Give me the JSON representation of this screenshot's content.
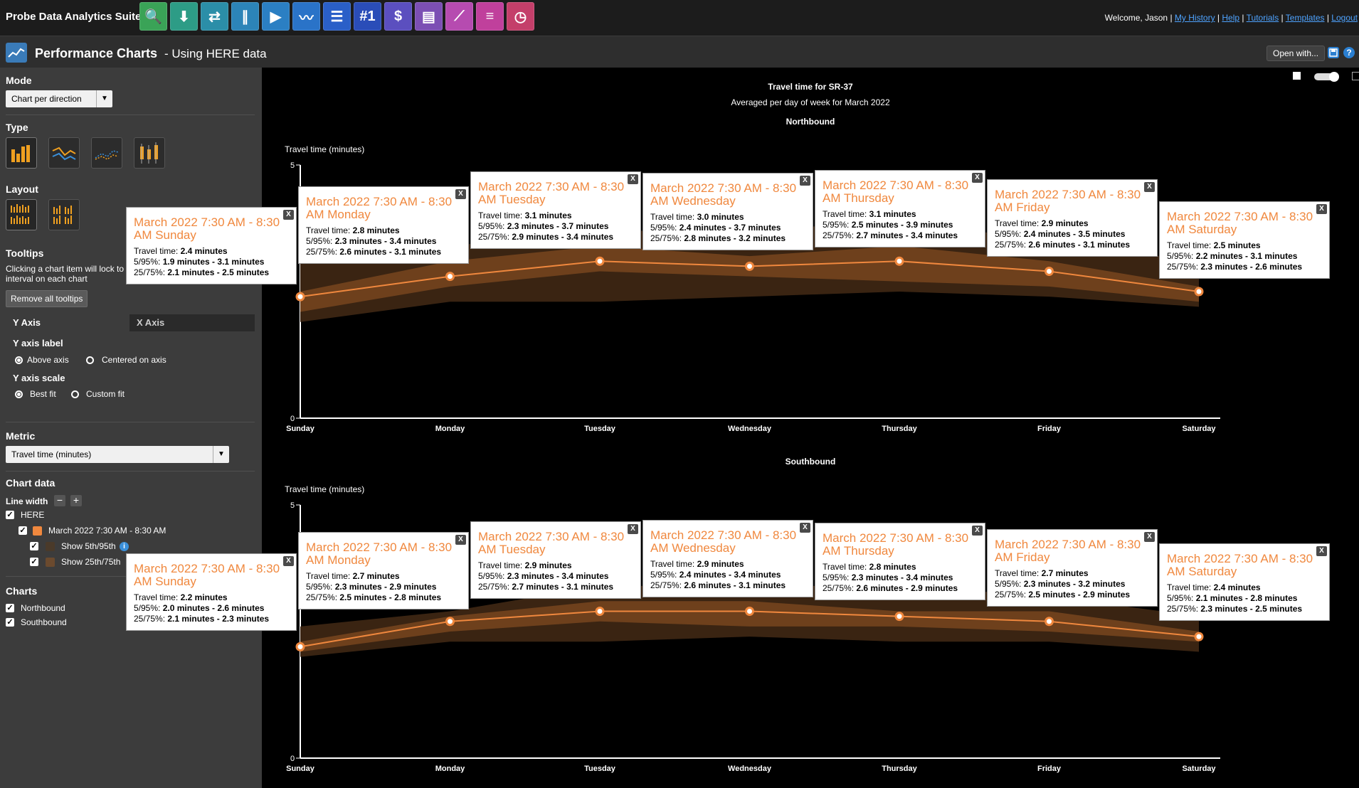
{
  "header": {
    "suite_title": "Probe Data Analytics Suite",
    "welcome": "Welcome, Jason",
    "links": [
      "My History",
      "Help",
      "Tutorials",
      "Templates",
      "Logout"
    ],
    "app_icons": [
      {
        "name": "search-map-icon",
        "bg": "#3aa357",
        "glyph": "🔍"
      },
      {
        "name": "download-icon",
        "bg": "#2d9c86",
        "glyph": "⬇"
      },
      {
        "name": "bottleneck-icon",
        "bg": "#2b8ea8",
        "glyph": "⇄"
      },
      {
        "name": "congestion-scan-icon",
        "bg": "#2c84b8",
        "glyph": "∥"
      },
      {
        "name": "trend-map-icon",
        "bg": "#2b7fc3",
        "glyph": "▶"
      },
      {
        "name": "performance-charts-icon",
        "bg": "#2a73c8",
        "glyph": "〰"
      },
      {
        "name": "ranking-list-icon",
        "bg": "#2a5fc8",
        "glyph": "☰"
      },
      {
        "name": "ranking-number-icon",
        "bg": "#2a4db8",
        "glyph": "#1"
      },
      {
        "name": "user-delay-cost-icon",
        "bg": "#5b4fbf",
        "glyph": "$"
      },
      {
        "name": "massive-data-downloader-icon",
        "bg": "#7c4fb4",
        "glyph": "▤"
      },
      {
        "name": "signal-analytics-icon",
        "bg": "#b64bb0",
        "glyph": "⟋"
      },
      {
        "name": "segmentation-icon",
        "bg": "#c0409c",
        "glyph": "≡"
      },
      {
        "name": "travel-time-icon",
        "bg": "#c43f6a",
        "glyph": "◷"
      }
    ]
  },
  "page": {
    "title": "Performance Charts",
    "subtitle": "- Using HERE data",
    "open_with": "Open with..."
  },
  "sidebar": {
    "mode_label": "Mode",
    "mode_value": "Chart per direction",
    "type_label": "Type",
    "layout_label": "Layout",
    "tooltips_label": "Tooltips",
    "tooltips_desc_1": "Clicking a chart item will lock to",
    "tooltips_desc_2": "interval on each chart",
    "remove_tooltips": "Remove all tooltips",
    "tab_y": "Y Axis",
    "tab_x": "X Axis",
    "y_label_title": "Y axis label",
    "above_axis": "Above axis",
    "centered_axis": "Centered on axis",
    "y_scale_title": "Y axis scale",
    "best_fit": "Best fit",
    "custom_fit": "Custom fit",
    "metric_label": "Metric",
    "metric_value": "Travel time (minutes)",
    "chart_data_label": "Chart data",
    "line_width": "Line width",
    "here": "HERE",
    "dataset": "March 2022 7:30 AM - 8:30 AM",
    "show_5_95": "Show 5th/95th",
    "show_25_75": "Show 25th/75th",
    "charts_label": "Charts",
    "northbound": "Northbound",
    "southbound": "Southbound",
    "dataset_color": "#f0883e"
  },
  "chart": {
    "title": "Travel time for SR-37",
    "subtitle": "Averaged per day of week for March 2022",
    "ylabel": "Travel time (minutes)",
    "accent": "#f0883e"
  },
  "chart_data": [
    {
      "type": "line",
      "title": "Northbound",
      "ylabel": "Travel time (minutes)",
      "ylim": [
        0,
        5
      ],
      "y_ticks": [
        "0",
        "5"
      ],
      "categories": [
        "Sunday",
        "Monday",
        "Tuesday",
        "Wednesday",
        "Thursday",
        "Friday",
        "Saturday"
      ],
      "series": [
        {
          "name": "March 2022 7:30 AM - 8:30 AM",
          "values": [
            2.4,
            2.8,
            3.1,
            3.0,
            3.1,
            2.9,
            2.5
          ]
        }
      ],
      "band_5_95": [
        [
          1.9,
          3.1
        ],
        [
          2.3,
          3.4
        ],
        [
          2.3,
          3.7
        ],
        [
          2.4,
          3.7
        ],
        [
          2.5,
          3.9
        ],
        [
          2.4,
          3.5
        ],
        [
          2.2,
          3.1
        ]
      ],
      "band_25_75": [
        [
          2.1,
          2.5
        ],
        [
          2.6,
          3.1
        ],
        [
          2.9,
          3.4
        ],
        [
          2.8,
          3.2
        ],
        [
          2.7,
          3.4
        ],
        [
          2.6,
          3.1
        ],
        [
          2.3,
          2.6
        ]
      ],
      "tooltips": [
        {
          "title": "March 2022 7:30 AM - 8:30 AM Sunday",
          "tt": "2.4 minutes",
          "p595": "1.9 minutes - 3.1 minutes",
          "p2575": "2.1 minutes - 2.5 minutes"
        },
        {
          "title": "March 2022 7:30 AM - 8:30 AM Monday",
          "tt": "2.8 minutes",
          "p595": "2.3 minutes - 3.4 minutes",
          "p2575": "2.6 minutes - 3.1 minutes"
        },
        {
          "title": "March 2022 7:30 AM - 8:30 AM Tuesday",
          "tt": "3.1 minutes",
          "p595": "2.3 minutes - 3.7 minutes",
          "p2575": "2.9 minutes - 3.4 minutes"
        },
        {
          "title": "March 2022 7:30 AM - 8:30 AM Wednesday",
          "tt": "3.0 minutes",
          "p595": "2.4 minutes - 3.7 minutes",
          "p2575": "2.8 minutes - 3.2 minutes"
        },
        {
          "title": "March 2022 7:30 AM - 8:30 AM Thursday",
          "tt": "3.1 minutes",
          "p595": "2.5 minutes - 3.9 minutes",
          "p2575": "2.7 minutes - 3.4 minutes"
        },
        {
          "title": "March 2022 7:30 AM - 8:30 AM Friday",
          "tt": "2.9 minutes",
          "p595": "2.4 minutes - 3.5 minutes",
          "p2575": "2.6 minutes - 3.1 minutes"
        },
        {
          "title": "March 2022 7:30 AM - 8:30 AM Saturday",
          "tt": "2.5 minutes",
          "p595": "2.2 minutes - 3.1 minutes",
          "p2575": "2.3 minutes - 2.6 minutes"
        }
      ]
    },
    {
      "type": "line",
      "title": "Southbound",
      "ylabel": "Travel time (minutes)",
      "ylim": [
        0,
        5
      ],
      "y_ticks": [
        "0",
        "5"
      ],
      "categories": [
        "Sunday",
        "Monday",
        "Tuesday",
        "Wednesday",
        "Thursday",
        "Friday",
        "Saturday"
      ],
      "series": [
        {
          "name": "March 2022 7:30 AM - 8:30 AM",
          "values": [
            2.2,
            2.7,
            2.9,
            2.9,
            2.8,
            2.7,
            2.4
          ]
        }
      ],
      "band_5_95": [
        [
          2.0,
          2.6
        ],
        [
          2.3,
          2.9
        ],
        [
          2.3,
          3.4
        ],
        [
          2.4,
          3.4
        ],
        [
          2.3,
          3.4
        ],
        [
          2.3,
          3.2
        ],
        [
          2.1,
          2.8
        ]
      ],
      "band_25_75": [
        [
          2.1,
          2.3
        ],
        [
          2.5,
          2.8
        ],
        [
          2.7,
          3.1
        ],
        [
          2.6,
          3.1
        ],
        [
          2.6,
          2.9
        ],
        [
          2.5,
          2.9
        ],
        [
          2.3,
          2.5
        ]
      ],
      "tooltips": [
        {
          "title": "March 2022 7:30 AM - 8:30 AM Sunday",
          "tt": "2.2 minutes",
          "p595": "2.0 minutes - 2.6 minutes",
          "p2575": "2.1 minutes - 2.3 minutes"
        },
        {
          "title": "March 2022 7:30 AM - 8:30 AM Monday",
          "tt": "2.7 minutes",
          "p595": "2.3 minutes - 2.9 minutes",
          "p2575": "2.5 minutes - 2.8 minutes"
        },
        {
          "title": "March 2022 7:30 AM - 8:30 AM Tuesday",
          "tt": "2.9 minutes",
          "p595": "2.3 minutes - 3.4 minutes",
          "p2575": "2.7 minutes - 3.1 minutes"
        },
        {
          "title": "March 2022 7:30 AM - 8:30 AM Wednesday",
          "tt": "2.9 minutes",
          "p595": "2.4 minutes - 3.4 minutes",
          "p2575": "2.6 minutes - 3.1 minutes"
        },
        {
          "title": "March 2022 7:30 AM - 8:30 AM Thursday",
          "tt": "2.8 minutes",
          "p595": "2.3 minutes - 3.4 minutes",
          "p2575": "2.6 minutes - 2.9 minutes"
        },
        {
          "title": "March 2022 7:30 AM - 8:30 AM Friday",
          "tt": "2.7 minutes",
          "p595": "2.3 minutes - 3.2 minutes",
          "p2575": "2.5 minutes - 2.9 minutes"
        },
        {
          "title": "March 2022 7:30 AM - 8:30 AM Saturday",
          "tt": "2.4 minutes",
          "p595": "2.1 minutes - 2.8 minutes",
          "p2575": "2.3 minutes - 2.5 minutes"
        }
      ]
    }
  ],
  "tooltip_labels": {
    "close": "X",
    "travel_time": "Travel time:",
    "p595": "5/95%:",
    "p2575": "25/75%:"
  }
}
